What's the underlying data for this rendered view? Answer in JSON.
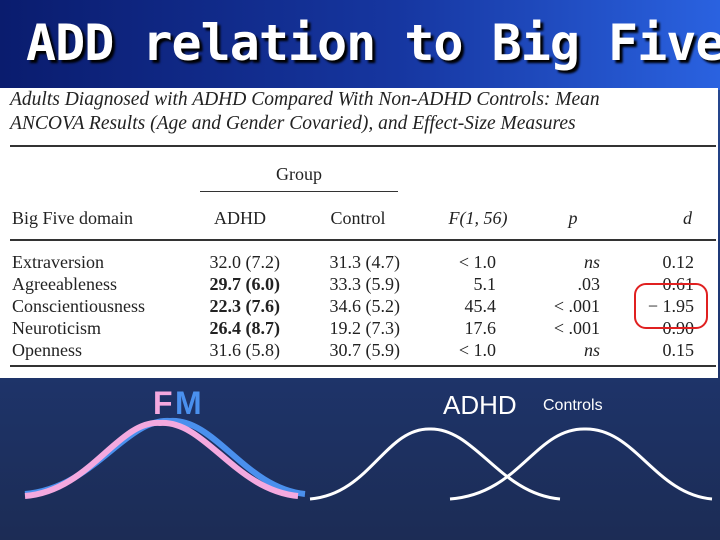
{
  "slide": {
    "title": "ADD relation to Big Five",
    "curve_labels": {
      "f": "F",
      "m": "M",
      "adhd": "ADHD",
      "controls": "Controls"
    },
    "colors": {
      "female": "#f4a9df",
      "male": "#4a90ee",
      "outline": "#ffffff"
    }
  },
  "table": {
    "caption_line1": "Adults Diagnosed with ADHD Compared With Non-ADHD Controls: Mean",
    "caption_line2": "ANCOVA Results (Age and Gender Covaried), and Effect-Size Measures",
    "group_header": "Group",
    "columns": [
      "Big Five domain",
      "ADHD",
      "Control",
      "F(1, 56)",
      "p",
      "d"
    ],
    "rows": [
      {
        "domain": "Extraversion",
        "adhd": "32.0 (7.2)",
        "adhd_bold": false,
        "control": "31.3 (4.7)",
        "f": "< 1.0",
        "p": "ns",
        "p_italic": true,
        "d": "0.12"
      },
      {
        "domain": "Agreeableness",
        "adhd": "29.7 (6.0)",
        "adhd_bold": true,
        "control": "33.3 (5.9)",
        "f": "5.1",
        "p": ".03",
        "p_italic": false,
        "d": "− 0.61"
      },
      {
        "domain": "Conscientiousness",
        "adhd": "22.3 (7.6)",
        "adhd_bold": true,
        "control": "34.6 (5.2)",
        "f": "45.4",
        "p": "< .001",
        "p_italic": false,
        "d": "− 1.95"
      },
      {
        "domain": "Neuroticism",
        "adhd": "26.4 (8.7)",
        "adhd_bold": true,
        "control": "19.2 (7.3)",
        "f": "17.6",
        "p": "< .001",
        "p_italic": false,
        "d": "0.90"
      },
      {
        "domain": "Openness",
        "adhd": "31.6 (5.8)",
        "adhd_bold": false,
        "control": "30.7 (5.9)",
        "f": "< 1.0",
        "p": "ns",
        "p_italic": true,
        "d": "0.15"
      }
    ]
  }
}
